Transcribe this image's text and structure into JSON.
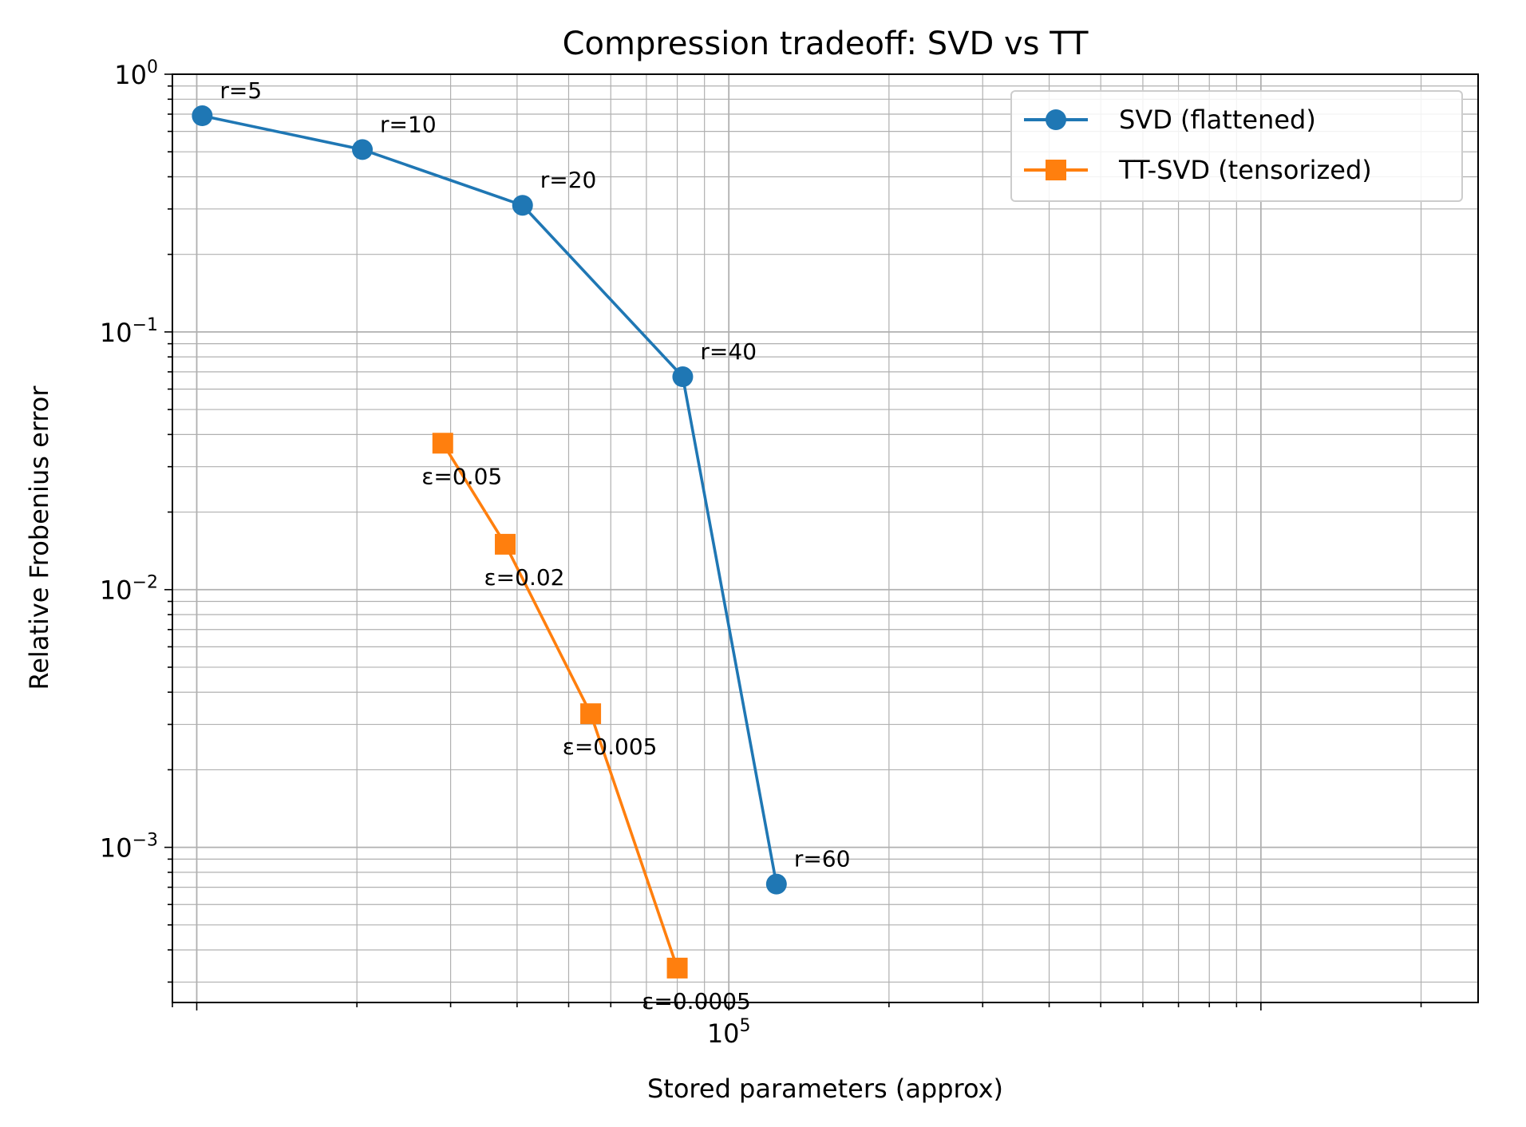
{
  "chart_data": {
    "type": "line",
    "title": "Compression tradeoff: SVD vs TT",
    "xlabel": "Stored parameters (approx)",
    "ylabel": "Relative Frobenius error",
    "xscale": "log",
    "yscale": "log",
    "xlim": [
      9000,
      2560000
    ],
    "ylim": [
      0.00025,
      1.0
    ],
    "grid": "both (major and minor)",
    "legend": "top-right",
    "x_major_ticks": [
      {
        "base": "10",
        "exp": "5",
        "value": 100000
      }
    ],
    "y_major_ticks": [
      {
        "base": "10",
        "exp": "0",
        "value": 1
      },
      {
        "base": "10",
        "exp": "−1",
        "value": 0.1
      },
      {
        "base": "10",
        "exp": "−2",
        "value": 0.01
      },
      {
        "base": "10",
        "exp": "−3",
        "value": 0.001
      }
    ],
    "series": [
      {
        "name": "SVD (flattened)",
        "color": "#1f77b4",
        "marker": "circle",
        "x": [
          10240,
          20480,
          40960,
          81920,
          122880
        ],
        "y": [
          0.69,
          0.51,
          0.31,
          0.067,
          0.00072
        ],
        "point_labels": [
          "r=5",
          "r=10",
          "r=20",
          "r=40",
          "r=60"
        ]
      },
      {
        "name": "TT-SVD (tensorized)",
        "color": "#ff7f0e",
        "marker": "square",
        "x": [
          29000,
          38000,
          55000,
          80000
        ],
        "y": [
          0.037,
          0.015,
          0.0033,
          0.00034
        ],
        "point_labels": [
          "ε=0.05",
          "ε=0.02",
          "ε=0.005",
          "ε=0.0005"
        ]
      }
    ]
  }
}
